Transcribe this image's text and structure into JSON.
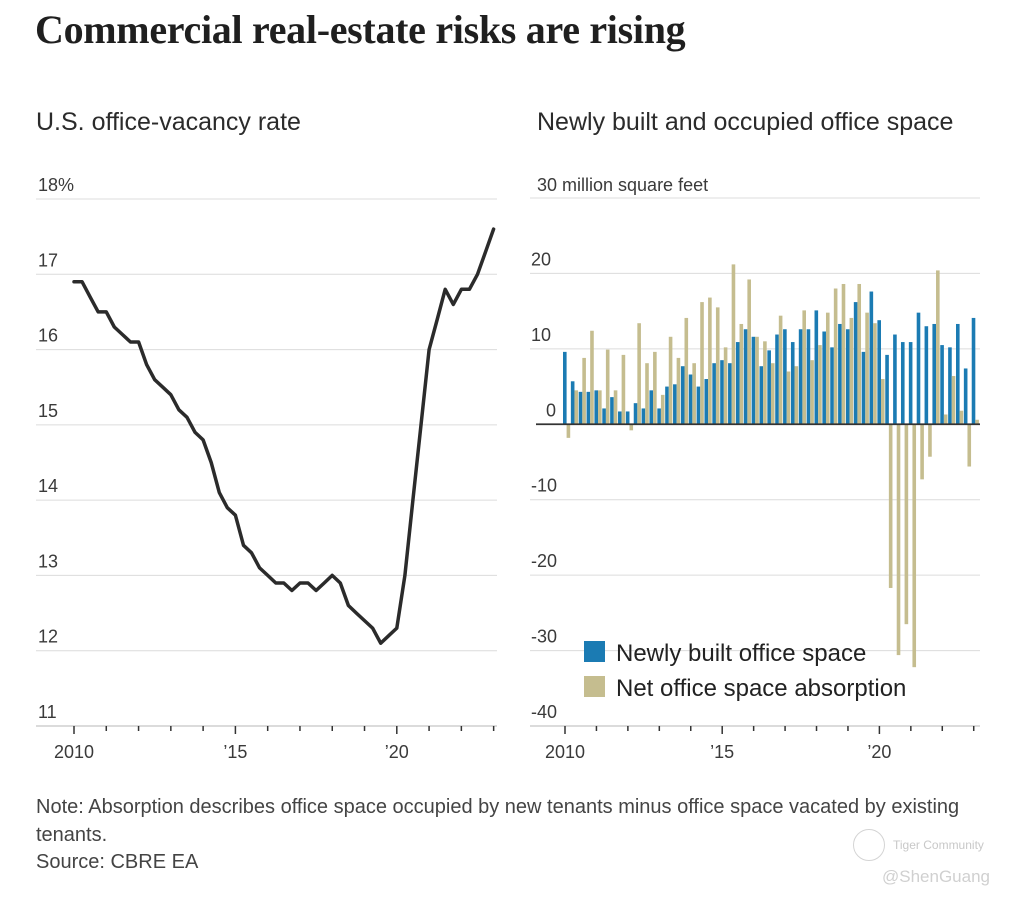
{
  "header": {
    "title": "Commercial real-estate risks are rising"
  },
  "chart_data": [
    {
      "type": "line",
      "title": "U.S. office-vacancy rate",
      "xlabel": "",
      "ylabel": "",
      "y_unit_label": "18%",
      "ylim": [
        11,
        18
      ],
      "yticks": [
        11,
        12,
        13,
        14,
        15,
        16,
        17,
        18
      ],
      "ytick_labels": [
        "11",
        "12",
        "13",
        "14",
        "15",
        "16",
        "17",
        "18%"
      ],
      "xticks_labeled": [
        {
          "year": 2010,
          "label": "2010"
        },
        {
          "year": 2015,
          "label": "’15"
        },
        {
          "year": 2020,
          "label": "’20"
        }
      ],
      "x_start": "2010 Q1",
      "x_frequency": "quarterly",
      "grid": true,
      "series": [
        {
          "name": "Office-vacancy rate",
          "color": "#2b2b2b",
          "values": [
            16.9,
            16.9,
            16.7,
            16.5,
            16.5,
            16.3,
            16.2,
            16.1,
            16.1,
            15.8,
            15.6,
            15.5,
            15.4,
            15.2,
            15.1,
            14.9,
            14.8,
            14.5,
            14.1,
            13.9,
            13.8,
            13.4,
            13.3,
            13.1,
            13.0,
            12.9,
            12.9,
            12.8,
            12.9,
            12.9,
            12.8,
            12.9,
            13.0,
            12.9,
            12.6,
            12.5,
            12.4,
            12.3,
            12.1,
            12.2,
            12.3,
            13.0,
            14.0,
            15.0,
            16.0,
            16.4,
            16.8,
            16.6,
            16.8,
            16.8,
            17.0,
            17.3,
            17.6
          ]
        }
      ]
    },
    {
      "type": "bar",
      "title": "Newly built and occupied office space",
      "y_unit_label": "30 million square feet",
      "ylim": [
        -40,
        30
      ],
      "yticks": [
        -40,
        -30,
        -20,
        -10,
        0,
        10,
        20,
        30
      ],
      "ytick_labels": [
        "-40",
        "-30",
        "-20",
        "-10",
        "0",
        "10",
        "20",
        ""
      ],
      "xticks_labeled": [
        {
          "year": 2010,
          "label": "2010"
        },
        {
          "year": 2015,
          "label": "’15"
        },
        {
          "year": 2020,
          "label": "’20"
        }
      ],
      "x_start": "2010 Q1",
      "x_frequency": "quarterly",
      "grid": true,
      "legend": "bottom-left",
      "series": [
        {
          "name": "Newly built office space",
          "color": "#1b7bb3",
          "values": [
            9.6,
            5.7,
            4.3,
            4.3,
            4.5,
            2.1,
            3.6,
            1.7,
            1.7,
            2.8,
            2.1,
            4.5,
            2.1,
            5.0,
            5.3,
            7.7,
            6.6,
            5.0,
            6.0,
            8.1,
            8.5,
            8.1,
            10.9,
            12.6,
            11.6,
            7.7,
            9.8,
            11.9,
            12.6,
            10.9,
            12.6,
            12.6,
            15.1,
            12.3,
            10.2,
            13.3,
            12.6,
            16.2,
            9.6,
            17.6,
            13.8,
            9.2,
            11.9,
            10.9,
            10.9,
            14.8,
            13.0,
            13.3,
            10.5,
            10.2,
            13.3,
            7.4,
            14.1
          ]
        },
        {
          "name": "Net office space absorption",
          "color": "#c5bd8f",
          "values": [
            -1.8,
            4.5,
            8.8,
            12.4,
            4.5,
            9.9,
            4.5,
            9.2,
            -0.8,
            13.4,
            8.1,
            9.6,
            3.9,
            11.6,
            8.8,
            14.1,
            8.1,
            16.2,
            16.8,
            15.5,
            10.2,
            21.2,
            13.3,
            19.2,
            11.6,
            11.0,
            8.1,
            14.4,
            7.0,
            7.7,
            15.1,
            8.5,
            10.5,
            14.8,
            18.0,
            18.6,
            14.1,
            18.6,
            14.8,
            13.4,
            6.0,
            -21.7,
            -30.6,
            -26.5,
            -32.2,
            -7.3,
            -4.3,
            20.4,
            1.3,
            6.4,
            1.8,
            -5.6,
            0.6
          ]
        }
      ]
    }
  ],
  "footer": {
    "note": "Note: Absorption describes office space occupied by new tenants minus office space vacated by existing tenants.",
    "source": "Source: CBRE EA"
  },
  "watermark": {
    "brand": "Tiger Community",
    "handle": "@ShenGuang",
    "icon": "tiger-logo-icon"
  }
}
